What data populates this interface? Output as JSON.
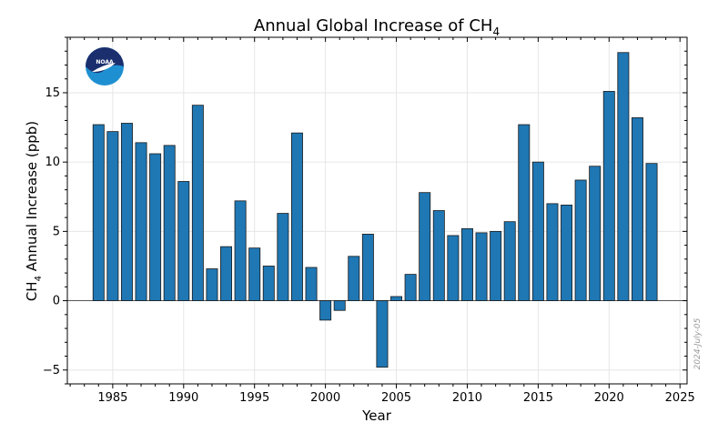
{
  "chart_data": {
    "type": "bar",
    "title_main": "Annual Global Increase of CH",
    "title_sub": "4",
    "ylabel_main": "CH",
    "ylabel_sub": "4",
    "ylabel_rest": " Annual Increase (ppb)",
    "xlabel": "Year",
    "xlim": [
      1981.8,
      2025.5
    ],
    "ylim": [
      -6,
      19
    ],
    "xticks": [
      1985,
      1990,
      1995,
      2000,
      2005,
      2010,
      2015,
      2020,
      2025
    ],
    "xtick_labels": [
      "1985",
      "1990",
      "1995",
      "2000",
      "2005",
      "2010",
      "2015",
      "2020",
      "2025"
    ],
    "yticks": [
      -5,
      0,
      5,
      10,
      15
    ],
    "ytick_labels": [
      "−5",
      "0",
      "5",
      "10",
      "15"
    ],
    "grid": true,
    "bar_color": "#1f77b4",
    "bar_edge_color": "#1a1a1a",
    "x": [
      1984,
      1985,
      1986,
      1987,
      1988,
      1989,
      1990,
      1991,
      1992,
      1993,
      1994,
      1995,
      1996,
      1997,
      1998,
      1999,
      2000,
      2001,
      2002,
      2003,
      2004,
      2005,
      2006,
      2007,
      2008,
      2009,
      2010,
      2011,
      2012,
      2013,
      2014,
      2015,
      2016,
      2017,
      2018,
      2019,
      2020,
      2021,
      2022,
      2023
    ],
    "values": [
      12.7,
      12.2,
      12.8,
      11.4,
      10.6,
      11.2,
      8.6,
      14.1,
      2.3,
      3.9,
      7.2,
      3.8,
      2.5,
      6.3,
      12.1,
      2.4,
      -1.4,
      -0.7,
      3.2,
      4.8,
      -4.8,
      0.3,
      1.9,
      7.8,
      6.5,
      4.7,
      5.2,
      4.9,
      5.0,
      5.7,
      12.7,
      10.0,
      7.0,
      6.9,
      8.7,
      9.7,
      15.1,
      17.9,
      13.2,
      9.9
    ]
  },
  "logo": {
    "text": "NOAA",
    "name": "noaa-logo"
  },
  "date_stamp": "2024-July-05",
  "colors": {
    "logo_dark": "#1b2f6e",
    "logo_light": "#1e90d2"
  }
}
